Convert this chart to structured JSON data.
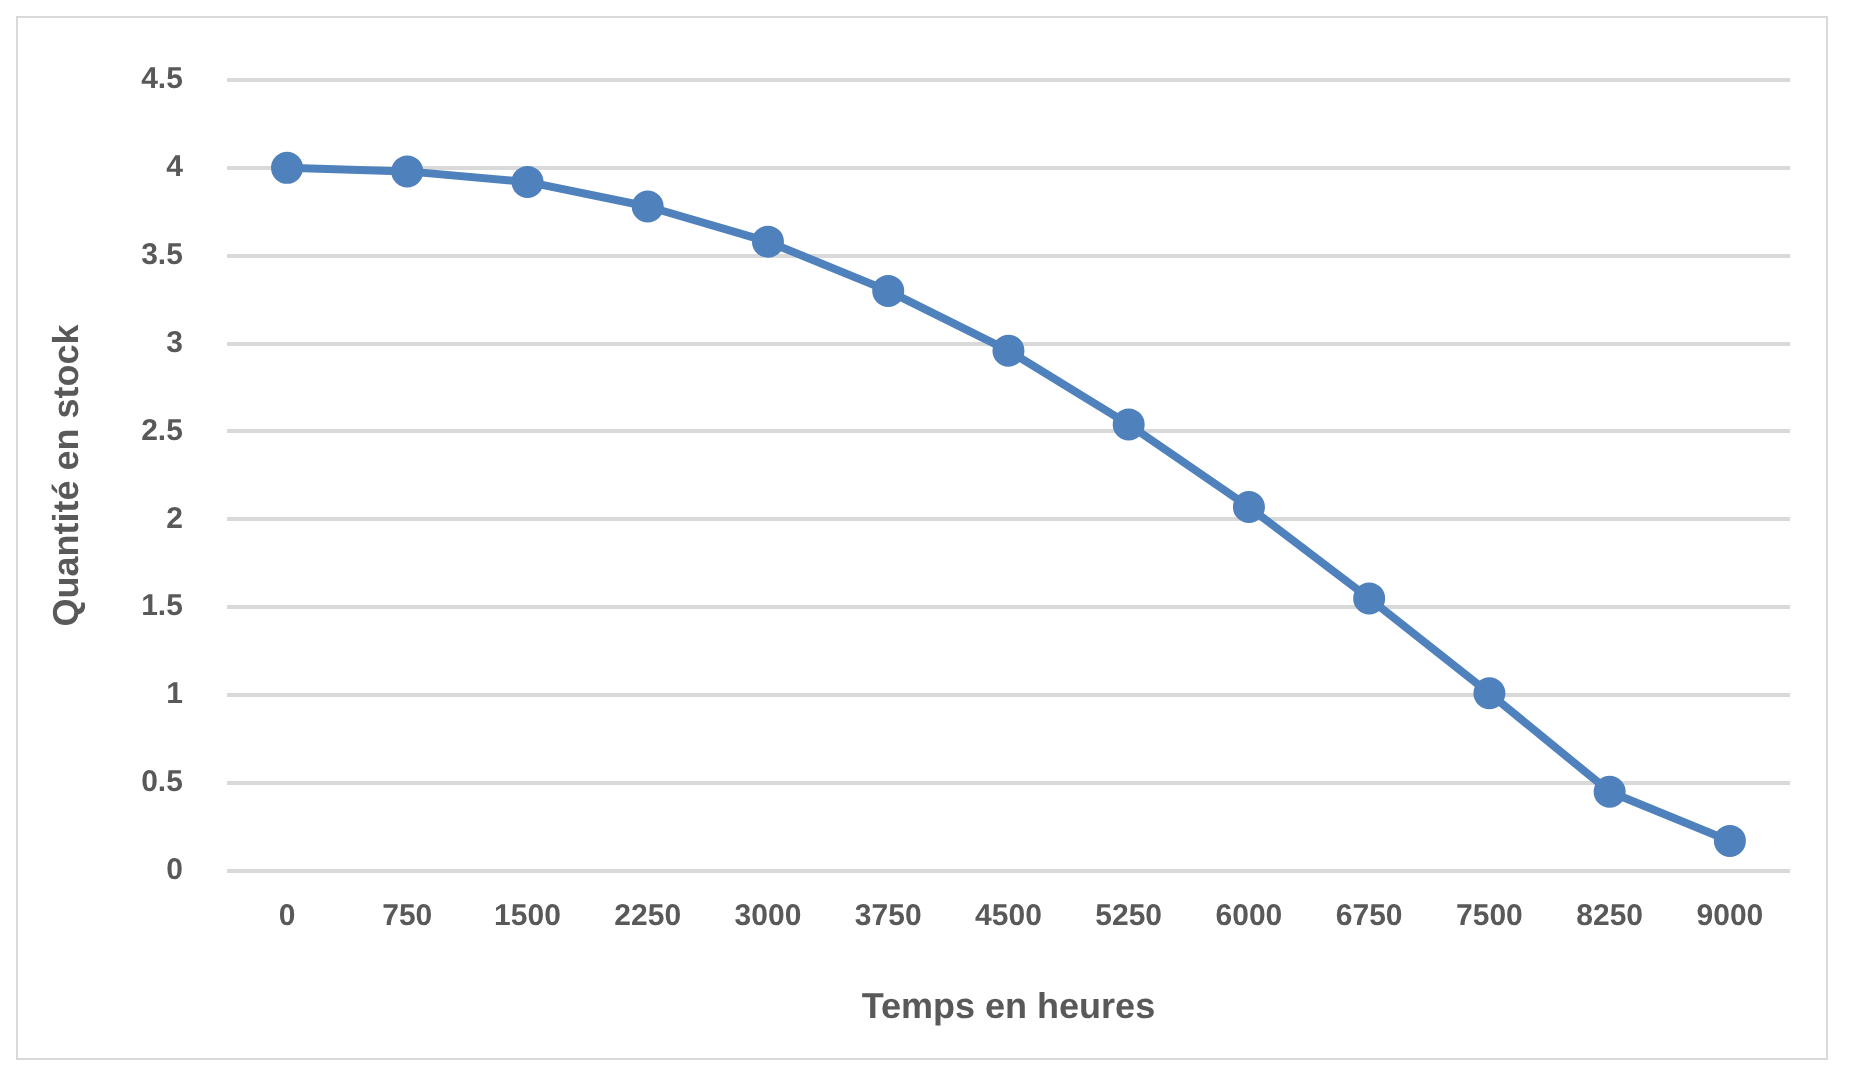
{
  "chart_data": {
    "type": "line",
    "xlabel": "Temps en heures",
    "ylabel": "Quantité en stock",
    "categories": [
      "0",
      "750",
      "1500",
      "2250",
      "3000",
      "3750",
      "4500",
      "5250",
      "6000",
      "6750",
      "7500",
      "8250",
      "9000"
    ],
    "series": [
      {
        "color": "#4f81bd",
        "values": [
          4.0,
          3.98,
          3.92,
          3.78,
          3.58,
          3.3,
          2.96,
          2.54,
          2.07,
          1.55,
          1.01,
          0.45,
          0.17
        ]
      }
    ],
    "ylim": [
      0,
      4.5
    ],
    "yticks": [
      0,
      0.5,
      1,
      1.5,
      2,
      2.5,
      3,
      3.5,
      4,
      4.5
    ],
    "grid": "y",
    "marker": "circle",
    "line_style": "solid",
    "legend": false
  }
}
